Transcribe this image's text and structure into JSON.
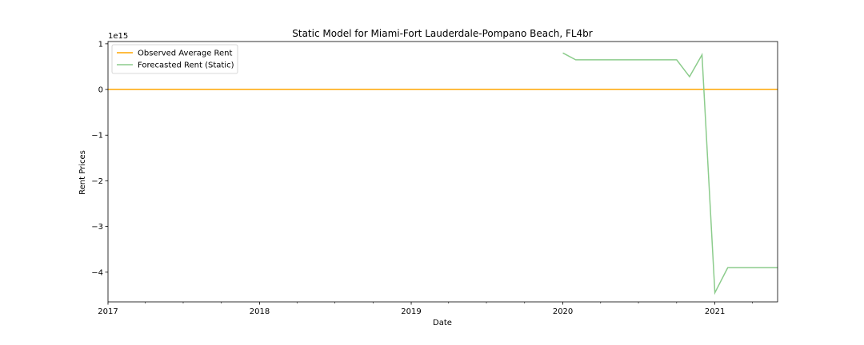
{
  "chart_data": {
    "type": "line",
    "title": "Static Model for Miami-Fort Lauderdale-Pompano Beach, FL4br",
    "xlabel": "Date",
    "ylabel": "Rent Prices",
    "y_scale_label": "1e15",
    "y_scale": 1000000000000000.0,
    "xlim": [
      "2017-01-01",
      "2021-06-01"
    ],
    "ylim": [
      -4.65,
      1.05
    ],
    "x_tick_labels": [
      "2017",
      "2018",
      "2019",
      "2020",
      "2021"
    ],
    "x_ticks": [
      "2017-01-01",
      "2018-01-01",
      "2019-01-01",
      "2020-01-01",
      "2021-01-01"
    ],
    "x_minor_ticks": [
      "2017-04-01",
      "2017-07-01",
      "2017-10-01",
      "2018-04-01",
      "2018-07-01",
      "2018-10-01",
      "2019-04-01",
      "2019-07-01",
      "2019-10-01",
      "2020-04-01",
      "2020-07-01",
      "2020-10-01",
      "2021-04-01"
    ],
    "y_ticks": [
      1,
      0,
      -1,
      -2,
      -3,
      -4
    ],
    "y_tick_labels": [
      "1",
      "0",
      "−1",
      "−2",
      "−3",
      "−4"
    ],
    "legend_position": "upper-left",
    "grid": false,
    "series": [
      {
        "name": "Observed Average Rent",
        "color": "#ffa500",
        "x": [
          "2017-01-01",
          "2021-06-01"
        ],
        "y": [
          0,
          0
        ]
      },
      {
        "name": "Forecasted Rent (Static)",
        "color": "#8ccc8c",
        "x": [
          "2020-01-01",
          "2020-02-01",
          "2020-03-01",
          "2020-04-01",
          "2020-05-01",
          "2020-06-01",
          "2020-07-01",
          "2020-08-01",
          "2020-09-01",
          "2020-10-01",
          "2020-11-01",
          "2020-12-01",
          "2021-01-01",
          "2021-02-01",
          "2021-03-01",
          "2021-04-01",
          "2021-05-01",
          "2021-06-01"
        ],
        "y": [
          0.8,
          0.65,
          0.65,
          0.65,
          0.65,
          0.65,
          0.65,
          0.65,
          0.65,
          0.65,
          0.28,
          0.76,
          -4.45,
          -3.9,
          -3.9,
          -3.9,
          -3.9,
          -3.9
        ]
      }
    ]
  }
}
